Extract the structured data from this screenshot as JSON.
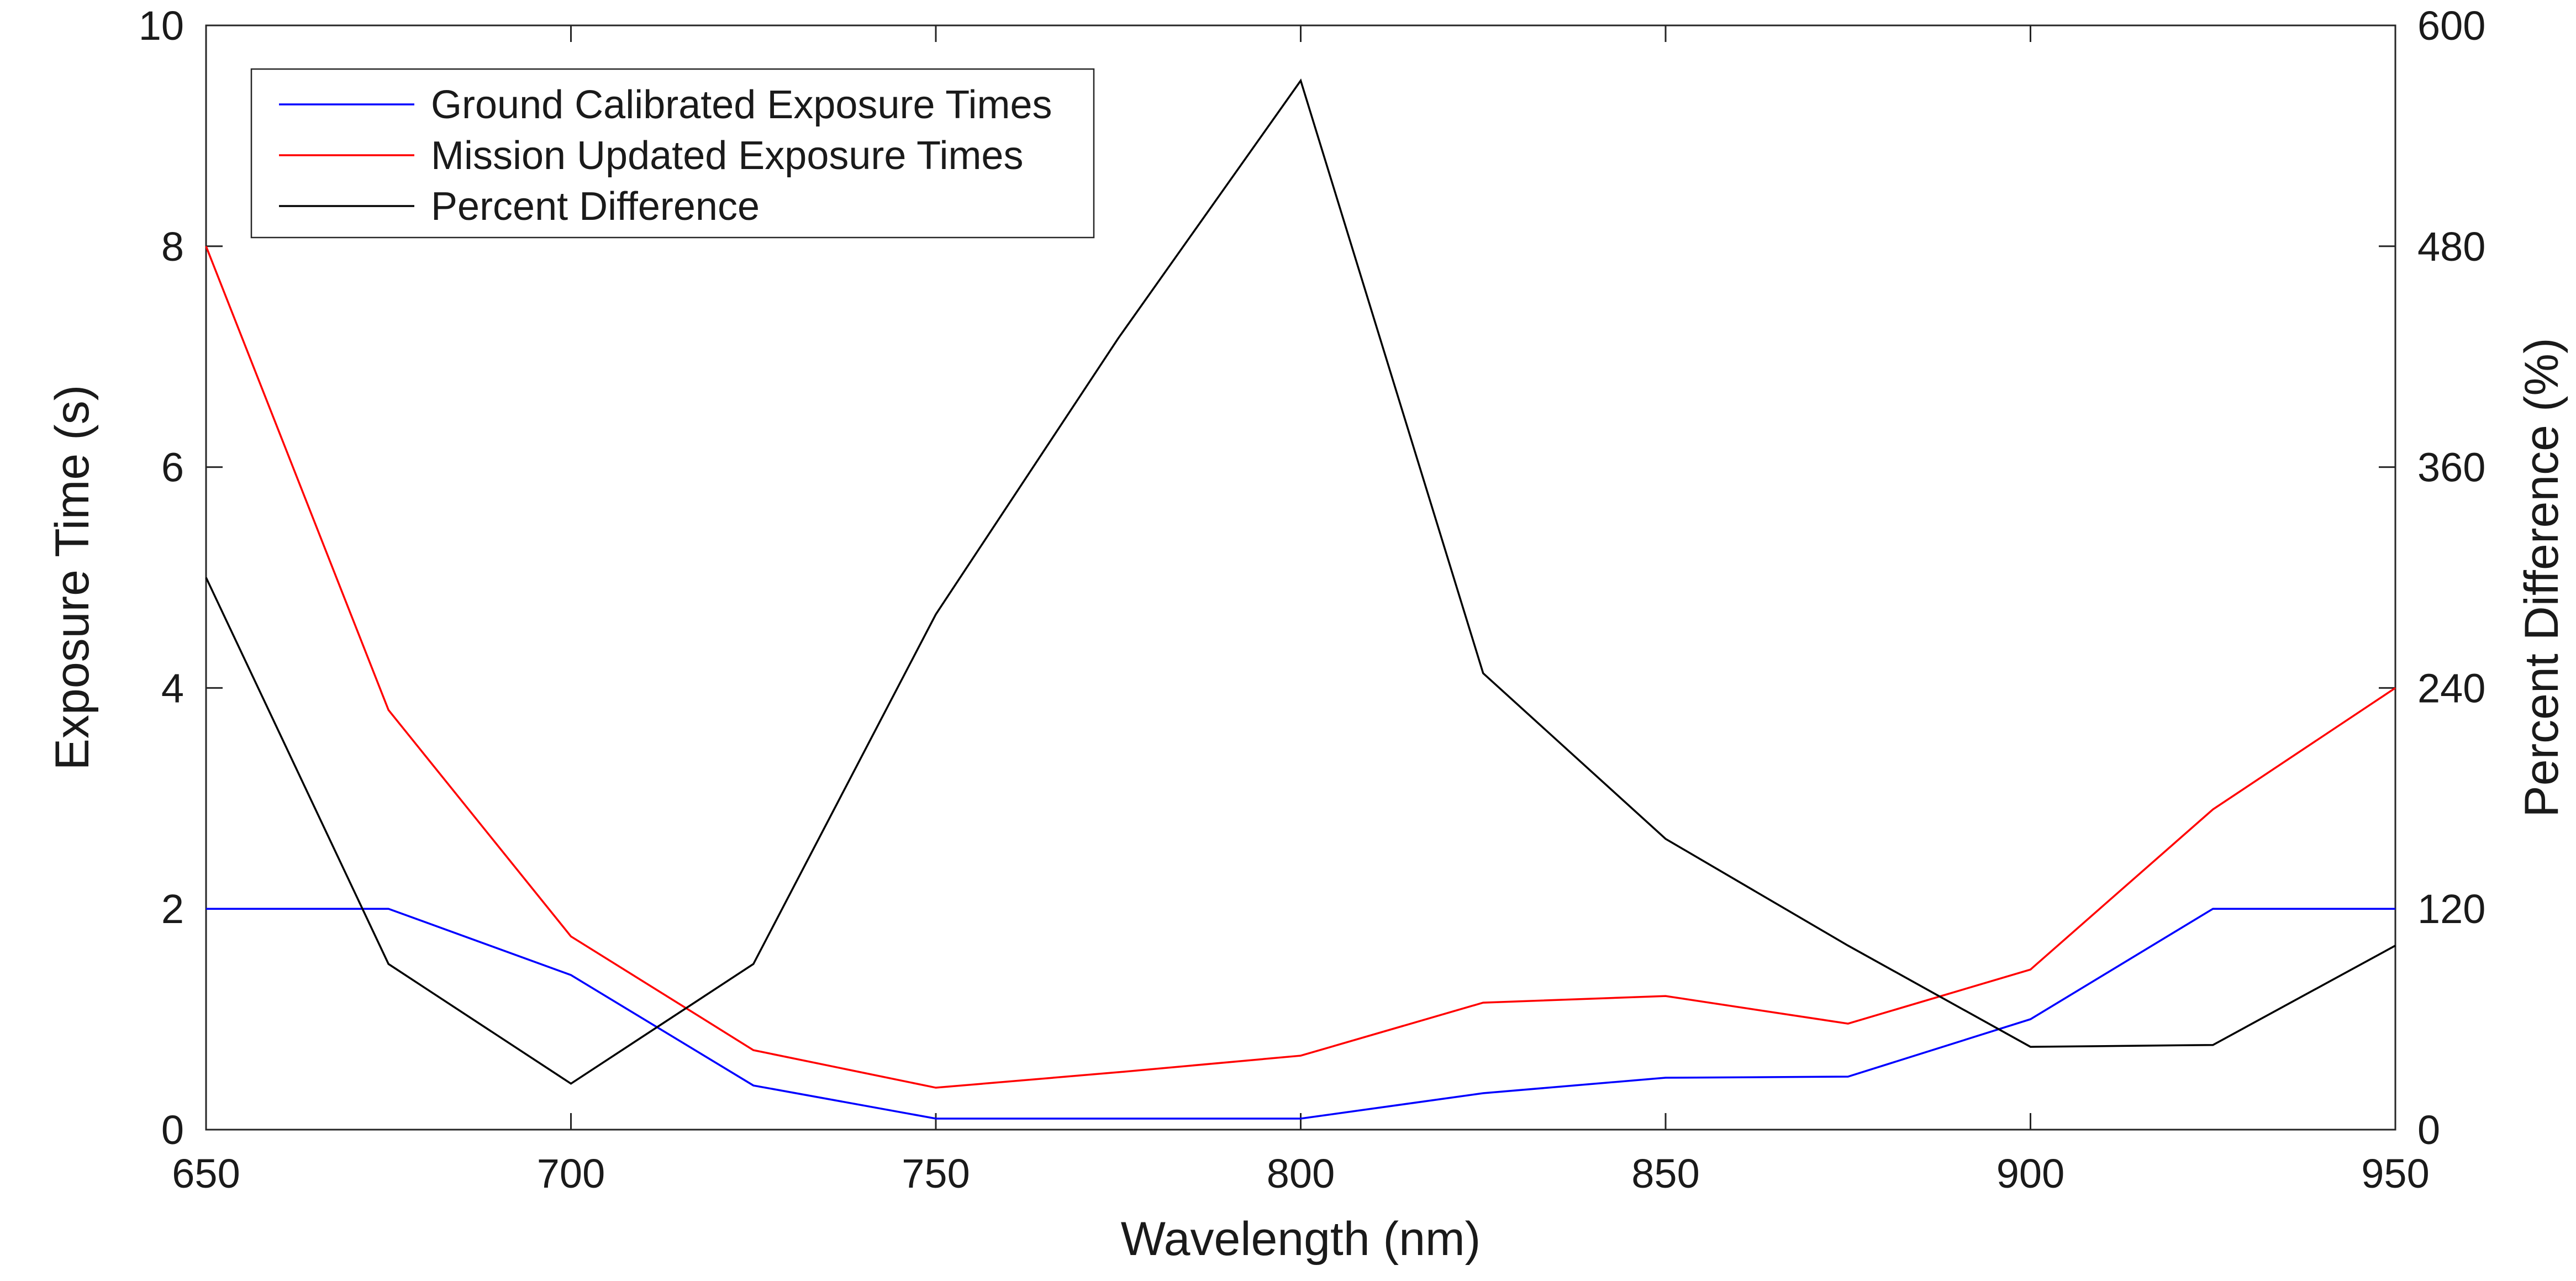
{
  "chart_data": {
    "type": "line",
    "title": "",
    "xlabel": "Wavelength (nm)",
    "ylabel": "Exposure Time (s)",
    "y2label": "Percent Difference (%)",
    "xlim": [
      650,
      950
    ],
    "ylim": [
      0,
      10
    ],
    "y2lim": [
      0,
      600
    ],
    "xticks": [
      650,
      700,
      750,
      800,
      850,
      900,
      950
    ],
    "xtick_labels": [
      "650",
      "700",
      "750",
      "800",
      "850",
      "900",
      "950"
    ],
    "yticks": [
      0,
      2,
      4,
      6,
      8,
      10
    ],
    "ytick_labels": [
      "0",
      "2",
      "4",
      "6",
      "8",
      "10"
    ],
    "y2ticks": [
      0,
      120,
      240,
      360,
      480,
      600
    ],
    "y2tick_labels": [
      "0",
      "120",
      "240",
      "360",
      "480",
      "600"
    ],
    "grid": false,
    "legend_position": "top-left",
    "x": [
      650,
      675,
      700,
      725,
      750,
      775,
      800,
      825,
      850,
      875,
      900,
      925,
      950
    ],
    "series": [
      {
        "name": "Ground Calibrated Exposure Times",
        "axis": "left",
        "color": "#0000ff",
        "values": [
          2.0,
          2.0,
          1.4,
          0.4,
          0.1,
          0.1,
          0.1,
          0.33,
          0.47,
          0.48,
          1.0,
          2.0,
          2.0
        ]
      },
      {
        "name": "Mission Updated Exposure Times",
        "axis": "left",
        "color": "#ff0000",
        "values": [
          8.0,
          3.8,
          1.75,
          0.72,
          0.38,
          0.52,
          0.67,
          1.15,
          1.21,
          0.96,
          1.45,
          2.9,
          4.0
        ]
      },
      {
        "name": "Percent Difference",
        "axis": "right",
        "color": "#000000",
        "values": [
          300,
          90,
          25,
          90,
          280,
          430,
          570,
          248,
          158,
          100,
          45,
          46,
          100
        ]
      }
    ]
  }
}
